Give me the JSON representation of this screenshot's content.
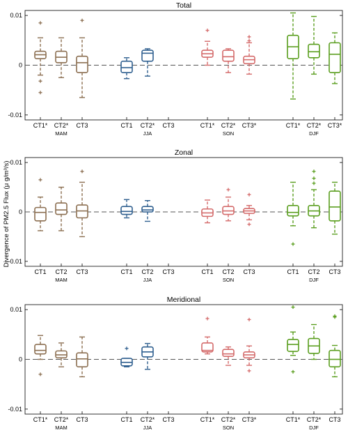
{
  "figure": {
    "ylabel": "Divergence of PM2.5 Flux (μ g/m³/s)"
  },
  "colors": {
    "MAM": "#8b6e50",
    "JJA": "#2f5f8f",
    "SON": "#d46a6a",
    "DJF": "#5a9e1e"
  },
  "chart_data": [
    {
      "type": "box",
      "title": "Total",
      "ylim": [
        -0.011,
        0.011
      ],
      "yticks": [
        {
          "v": 0.01,
          "label": "0.01"
        },
        {
          "v": 0,
          "label": "0"
        },
        {
          "v": -0.01,
          "label": "-0.01"
        }
      ],
      "grid": false,
      "seasons": [
        "MAM",
        "JJA",
        "SON",
        "DJF"
      ],
      "boxes": [
        {
          "label": "CT1*",
          "season": "MAM",
          "wlo": -0.002,
          "q1": 0.0013,
          "med": 0.0021,
          "q3": 0.0028,
          "whi": 0.0055,
          "outliers": [
            0.0085,
            -0.0032,
            -0.0055
          ]
        },
        {
          "label": "CT2*",
          "season": "MAM",
          "wlo": -0.0025,
          "q1": 0.0005,
          "med": 0.0016,
          "q3": 0.0028,
          "whi": 0.0055,
          "outliers": []
        },
        {
          "label": "CT3",
          "season": "MAM",
          "wlo": -0.0065,
          "q1": -0.0015,
          "med": 0.0005,
          "q3": 0.0018,
          "whi": 0.0055,
          "outliers": [
            0.009
          ]
        },
        {
          "label": "CT1",
          "season": "JJA",
          "wlo": -0.0027,
          "q1": -0.0015,
          "med": -0.0005,
          "q3": 0.0008,
          "whi": 0.0015,
          "outliers": []
        },
        {
          "label": "CT2*",
          "season": "JJA",
          "wlo": -0.0022,
          "q1": 0.0008,
          "med": 0.0024,
          "q3": 0.003,
          "whi": 0.0033,
          "outliers": []
        },
        {
          "label": "CT3",
          "season": "JJA",
          "empty": true
        },
        {
          "label": "CT1*",
          "season": "SON",
          "wlo": 0.0,
          "q1": 0.0016,
          "med": 0.0023,
          "q3": 0.003,
          "whi": 0.0048,
          "outliers": [
            0.007
          ]
        },
        {
          "label": "CT2*",
          "season": "SON",
          "wlo": -0.0015,
          "q1": 0.0008,
          "med": 0.0017,
          "q3": 0.003,
          "whi": 0.0033,
          "outliers": []
        },
        {
          "label": "CT3*",
          "season": "SON",
          "wlo": -0.0018,
          "q1": 0.0003,
          "med": 0.0011,
          "q3": 0.0018,
          "whi": 0.0045,
          "outliers": [
            0.0057,
            0.0049
          ]
        },
        {
          "label": "CT1*",
          "season": "DJF",
          "wlo": -0.0068,
          "q1": 0.0013,
          "med": 0.0037,
          "q3": 0.006,
          "whi": 0.0105,
          "outliers": []
        },
        {
          "label": "CT2*",
          "season": "DJF",
          "wlo": -0.0018,
          "q1": 0.0015,
          "med": 0.0027,
          "q3": 0.0042,
          "whi": 0.0098,
          "outliers": []
        },
        {
          "label": "CT3*",
          "season": "DJF",
          "wlo": -0.0037,
          "q1": -0.0015,
          "med": 0.0022,
          "q3": 0.0045,
          "whi": 0.0065,
          "outliers": []
        }
      ]
    },
    {
      "type": "box",
      "title": "Zonal",
      "ylim": [
        -0.011,
        0.011
      ],
      "yticks": [
        {
          "v": 0.01,
          "label": "0.01"
        },
        {
          "v": 0,
          "label": "0"
        },
        {
          "v": -0.01,
          "label": "-0.01"
        }
      ],
      "grid": false,
      "seasons": [
        "MAM",
        "JJA",
        "SON",
        "DJF"
      ],
      "boxes": [
        {
          "label": "CT1",
          "season": "MAM",
          "wlo": -0.0038,
          "q1": -0.0018,
          "med": -0.0001,
          "q3": 0.0009,
          "whi": 0.003,
          "outliers": [
            0.0065
          ]
        },
        {
          "label": "CT2",
          "season": "MAM",
          "wlo": -0.0038,
          "q1": -0.0005,
          "med": 0.0004,
          "q3": 0.0018,
          "whi": 0.005,
          "outliers": []
        },
        {
          "label": "CT3",
          "season": "MAM",
          "wlo": -0.005,
          "q1": -0.0012,
          "med": 0.0002,
          "q3": 0.0014,
          "whi": 0.006,
          "outliers": [
            0.0082
          ]
        },
        {
          "label": "CT1",
          "season": "JJA",
          "wlo": -0.0012,
          "q1": -0.0005,
          "med": 0.0001,
          "q3": 0.0011,
          "whi": 0.0025,
          "outliers": []
        },
        {
          "label": "CT2",
          "season": "JJA",
          "wlo": -0.0019,
          "q1": 0.0,
          "med": 0.0004,
          "q3": 0.0011,
          "whi": 0.0023,
          "outliers": []
        },
        {
          "label": "CT3",
          "season": "JJA",
          "empty": true
        },
        {
          "label": "CT1",
          "season": "SON",
          "wlo": -0.0022,
          "q1": -0.0009,
          "med": -0.0002,
          "q3": 0.0006,
          "whi": 0.0024,
          "outliers": []
        },
        {
          "label": "CT2",
          "season": "SON",
          "wlo": -0.0018,
          "q1": -0.0005,
          "med": 0.0002,
          "q3": 0.0011,
          "whi": 0.003,
          "outliers": [
            0.0045
          ]
        },
        {
          "label": "CT3",
          "season": "SON",
          "wlo": -0.0016,
          "q1": -0.0003,
          "med": 0.0002,
          "q3": 0.0007,
          "whi": 0.0013,
          "outliers": [
            0.0035,
            -0.0025
          ]
        },
        {
          "label": "CT1",
          "season": "DJF",
          "wlo": -0.0028,
          "q1": -0.0008,
          "med": -0.0001,
          "q3": 0.0013,
          "whi": 0.006,
          "outliers": [
            -0.0065
          ]
        },
        {
          "label": "CT2",
          "season": "DJF",
          "wlo": -0.0032,
          "q1": -0.0008,
          "med": 0.0002,
          "q3": 0.0013,
          "whi": 0.0045,
          "outliers": [
            0.0058,
            0.0068,
            0.0082
          ]
        },
        {
          "label": "CT3",
          "season": "DJF",
          "wlo": -0.0045,
          "q1": -0.0018,
          "med": 0.001,
          "q3": 0.0042,
          "whi": 0.006,
          "outliers": []
        }
      ]
    },
    {
      "type": "box",
      "title": "Meridional",
      "ylim": [
        -0.011,
        0.011
      ],
      "yticks": [
        {
          "v": 0.01,
          "label": "0.01"
        },
        {
          "v": 0,
          "label": "0"
        },
        {
          "v": -0.01,
          "label": "-0.01"
        }
      ],
      "grid": false,
      "seasons": [
        "MAM",
        "JJA",
        "SON",
        "DJF"
      ],
      "boxes": [
        {
          "label": "CT1*",
          "season": "MAM",
          "wlo": 0.0,
          "q1": 0.0011,
          "med": 0.0018,
          "q3": 0.003,
          "whi": 0.0048,
          "outliers": [
            -0.003
          ]
        },
        {
          "label": "CT2*",
          "season": "MAM",
          "wlo": -0.0015,
          "q1": 0.0003,
          "med": 0.0009,
          "q3": 0.0017,
          "whi": 0.0033,
          "outliers": []
        },
        {
          "label": "CT3",
          "season": "MAM",
          "wlo": -0.0035,
          "q1": -0.0015,
          "med": 0.0001,
          "q3": 0.0013,
          "whi": 0.0045,
          "outliers": []
        },
        {
          "label": "CT1",
          "season": "JJA",
          "wlo": -0.0015,
          "q1": -0.0013,
          "med": -0.0006,
          "q3": 0.0002,
          "whi": 0.0002,
          "outliers": [
            0.0022
          ]
        },
        {
          "label": "CT2*",
          "season": "JJA",
          "wlo": -0.002,
          "q1": 0.0005,
          "med": 0.0015,
          "q3": 0.0025,
          "whi": 0.0032,
          "outliers": []
        },
        {
          "label": "CT3",
          "season": "JJA",
          "empty": true
        },
        {
          "label": "CT1*",
          "season": "SON",
          "wlo": 0.0011,
          "q1": 0.0015,
          "med": 0.0018,
          "q3": 0.0033,
          "whi": 0.0045,
          "outliers": [
            0.0082
          ]
        },
        {
          "label": "CT2*",
          "season": "SON",
          "wlo": -0.0012,
          "q1": 0.0006,
          "med": 0.0011,
          "q3": 0.002,
          "whi": 0.0025,
          "outliers": []
        },
        {
          "label": "CT3*",
          "season": "SON",
          "wlo": -0.0012,
          "q1": 0.0003,
          "med": 0.0009,
          "q3": 0.0015,
          "whi": 0.0027,
          "outliers": [
            0.008,
            -0.0023
          ]
        },
        {
          "label": "CT1*",
          "season": "DJF",
          "wlo": 0.0008,
          "q1": 0.0016,
          "med": 0.003,
          "q3": 0.004,
          "whi": 0.0055,
          "outliers": [
            0.0105,
            -0.0025
          ]
        },
        {
          "label": "CT2*",
          "season": "DJF",
          "wlo": 0.0,
          "q1": 0.0012,
          "med": 0.0027,
          "q3": 0.0042,
          "whi": 0.007,
          "outliers": []
        },
        {
          "label": "CT3",
          "season": "DJF",
          "wlo": -0.0035,
          "q1": -0.0015,
          "med": 0.0,
          "q3": 0.0018,
          "whi": 0.0028,
          "outliers": [
            0.0085,
            0.0087
          ]
        }
      ]
    }
  ]
}
